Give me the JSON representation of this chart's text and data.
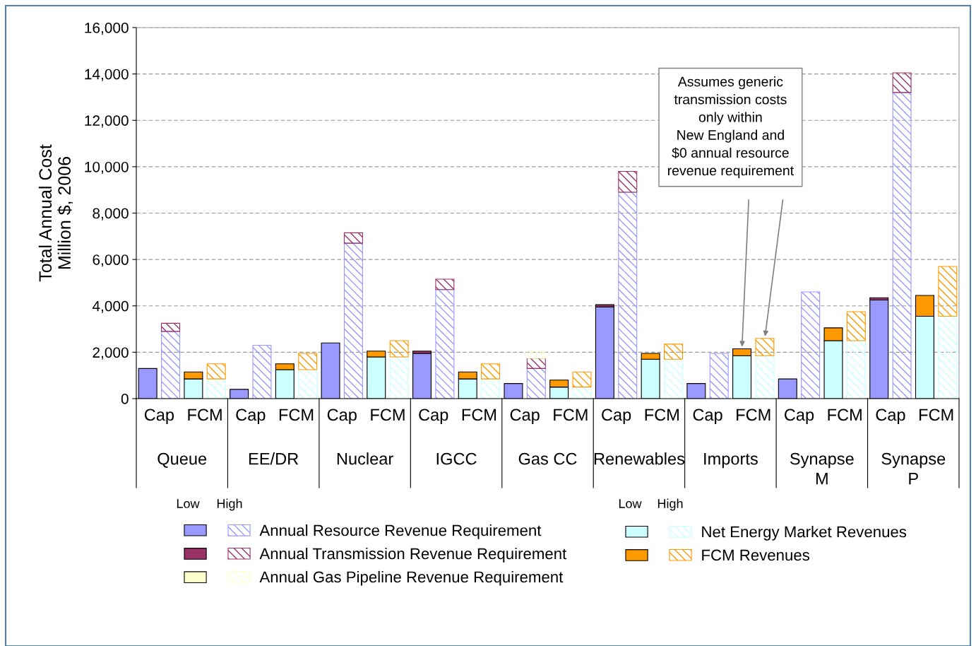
{
  "chart_data": {
    "type": "bar",
    "stacked": true,
    "ylabel": "Total Annual Cost\nMillion $, 2006",
    "categories": [
      "Cap",
      null,
      "FCM",
      null,
      "Cap",
      null,
      "FCM",
      null,
      "Cap",
      null,
      "FCM",
      null,
      "Cap",
      null,
      "FCM",
      null,
      "Cap",
      null,
      "FCM",
      null,
      "Cap",
      null,
      "FCM",
      null,
      "Cap",
      null,
      "FCM",
      null,
      "Cap",
      null,
      "FCM",
      null,
      "Cap",
      null,
      "FCM",
      null
    ],
    "series": [
      {
        "color": "#9999ff",
        "values": [
          1300,
          null,
          null,
          null,
          400,
          null,
          null,
          null,
          2400,
          null,
          null,
          null,
          1950,
          null,
          null,
          null,
          650,
          null,
          null,
          null,
          3950,
          null,
          null,
          null,
          650,
          null,
          null,
          null,
          850,
          null,
          null,
          null,
          4250,
          null,
          null,
          null
        ]
      },
      {
        "color": "#993366",
        "values": [
          null,
          null,
          null,
          null,
          null,
          null,
          null,
          null,
          null,
          null,
          null,
          null,
          100,
          null,
          null,
          null,
          null,
          null,
          null,
          null,
          100,
          null,
          null,
          null,
          null,
          null,
          null,
          null,
          null,
          null,
          null,
          null,
          100,
          null,
          null,
          null
        ]
      },
      {
        "color": "#ffffcc",
        "values": [
          null,
          null,
          null,
          null,
          null,
          null,
          null,
          null,
          null,
          null,
          null,
          null,
          null,
          null,
          null,
          null,
          null,
          null,
          null,
          null,
          null,
          null,
          null,
          null,
          null,
          null,
          null,
          null,
          null,
          null,
          null,
          null,
          null,
          null,
          null,
          null
        ]
      },
      {
        "color": "#ccffff",
        "values": [
          null,
          null,
          850,
          null,
          null,
          null,
          1250,
          null,
          null,
          null,
          1800,
          null,
          null,
          null,
          850,
          null,
          null,
          null,
          500,
          null,
          null,
          null,
          1700,
          null,
          null,
          null,
          1850,
          null,
          null,
          null,
          2500,
          null,
          null,
          null,
          3550,
          null
        ]
      },
      {
        "color": "#ff9900",
        "values": [
          null,
          null,
          300,
          null,
          null,
          null,
          250,
          null,
          null,
          null,
          250,
          null,
          null,
          null,
          300,
          null,
          null,
          null,
          300,
          null,
          null,
          null,
          250,
          null,
          null,
          null,
          300,
          null,
          null,
          null,
          550,
          null,
          null,
          null,
          900,
          null
        ]
      },
      {
        "name": "Annual Resource Revenue Requirement",
        "color": "#9999ff",
        "values": [
          null,
          2900,
          null,
          null,
          null,
          2300,
          null,
          null,
          null,
          6700,
          null,
          null,
          null,
          4700,
          null,
          null,
          null,
          1300,
          null,
          null,
          null,
          8900,
          null,
          null,
          null,
          1950,
          null,
          null,
          null,
          4600,
          null,
          null,
          null,
          13200,
          null,
          null
        ]
      },
      {
        "name": "Annual Transmission Revenue Requirement",
        "color": "#993366",
        "values": [
          null,
          350,
          null,
          null,
          null,
          null,
          null,
          null,
          null,
          450,
          null,
          null,
          null,
          450,
          null,
          null,
          null,
          450,
          null,
          null,
          null,
          900,
          null,
          null,
          null,
          null,
          null,
          null,
          null,
          null,
          null,
          null,
          null,
          850,
          null,
          null
        ]
      },
      {
        "name": "Annual Gas Pipeline Revenue Requirement",
        "color": "#ffffcc",
        "values": [
          null,
          null,
          null,
          null,
          null,
          null,
          null,
          null,
          null,
          null,
          null,
          null,
          null,
          null,
          null,
          null,
          null,
          300,
          null,
          null,
          null,
          null,
          null,
          null,
          null,
          null,
          null,
          null,
          null,
          null,
          null,
          null,
          null,
          null,
          null,
          null
        ]
      },
      {
        "name": "Net Energy Market Revenues",
        "color": "#ccffff",
        "values": [
          null,
          null,
          null,
          850,
          null,
          null,
          null,
          1250,
          null,
          null,
          null,
          1800,
          null,
          null,
          null,
          850,
          null,
          null,
          null,
          500,
          null,
          null,
          null,
          1700,
          null,
          null,
          null,
          1850,
          null,
          null,
          null,
          2500,
          null,
          null,
          null,
          3550
        ]
      },
      {
        "name": "FCM Revenues",
        "color": "#ff9900",
        "values": [
          null,
          null,
          null,
          650,
          null,
          null,
          null,
          700,
          null,
          null,
          null,
          700,
          null,
          null,
          null,
          650,
          null,
          null,
          null,
          650,
          null,
          null,
          null,
          650,
          null,
          null,
          null,
          750,
          null,
          null,
          null,
          1250,
          null,
          null,
          null,
          2150
        ]
      }
    ],
    "ylim": [
      0,
      16000
    ],
    "yticks": [
      {
        "value": 0,
        "label": "0"
      },
      {
        "value": 2000,
        "label": "2,000"
      },
      {
        "value": 4000,
        "label": "4,000"
      },
      {
        "value": 6000,
        "label": "6,000"
      },
      {
        "value": 8000,
        "label": "8,000"
      },
      {
        "value": 10000,
        "label": "10,000"
      },
      {
        "value": 12000,
        "label": "12,000"
      },
      {
        "value": 14000,
        "label": "14,000"
      },
      {
        "value": 16000,
        "label": "16,000"
      }
    ],
    "grid": "y",
    "legend": "bottom",
    "annotations": [
      "Queue",
      "EE/DR",
      "Nuclear",
      "IGCC",
      "Gas CC",
      "Renewables",
      "Imports",
      "Synapse\nM",
      "Synapse\nP",
      "Low",
      "High",
      "Low",
      "High",
      "Assumes generic\ntransmission costs\nonly within\nNew England and\n$0 annual resource\nrevenue requirement"
    ]
  }
}
